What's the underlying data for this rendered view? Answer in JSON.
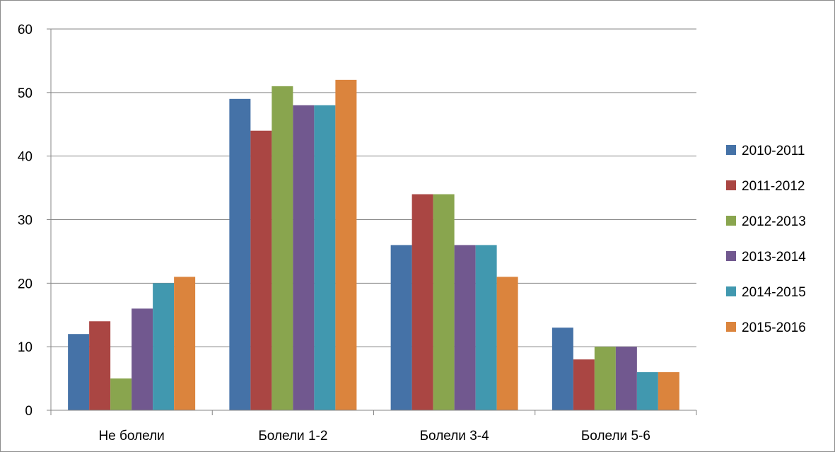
{
  "chart_data": {
    "type": "bar",
    "categories": [
      "Не болели",
      "Болели 1-2",
      "Болели 3-4",
      "Болели 5-6"
    ],
    "series": [
      {
        "name": "2010-2011",
        "color": "#4572A7",
        "values": [
          12,
          49,
          26,
          13
        ]
      },
      {
        "name": "2011-2012",
        "color": "#AA4643",
        "values": [
          14,
          44,
          34,
          8
        ]
      },
      {
        "name": "2012-2013",
        "color": "#89A54E",
        "values": [
          5,
          51,
          34,
          10
        ]
      },
      {
        "name": "2013-2014",
        "color": "#71588F",
        "values": [
          16,
          48,
          26,
          10
        ]
      },
      {
        "name": "2014-2015",
        "color": "#4198AF",
        "values": [
          20,
          48,
          26,
          6
        ]
      },
      {
        "name": "2015-2016",
        "color": "#DB843D",
        "values": [
          21,
          52,
          21,
          6
        ]
      }
    ],
    "yticks": [
      "0",
      "10",
      "20",
      "30",
      "40",
      "50",
      "60"
    ],
    "ylim": [
      0,
      60
    ],
    "grid": true,
    "legend_position": "right",
    "title": "",
    "xlabel": "",
    "ylabel": ""
  }
}
